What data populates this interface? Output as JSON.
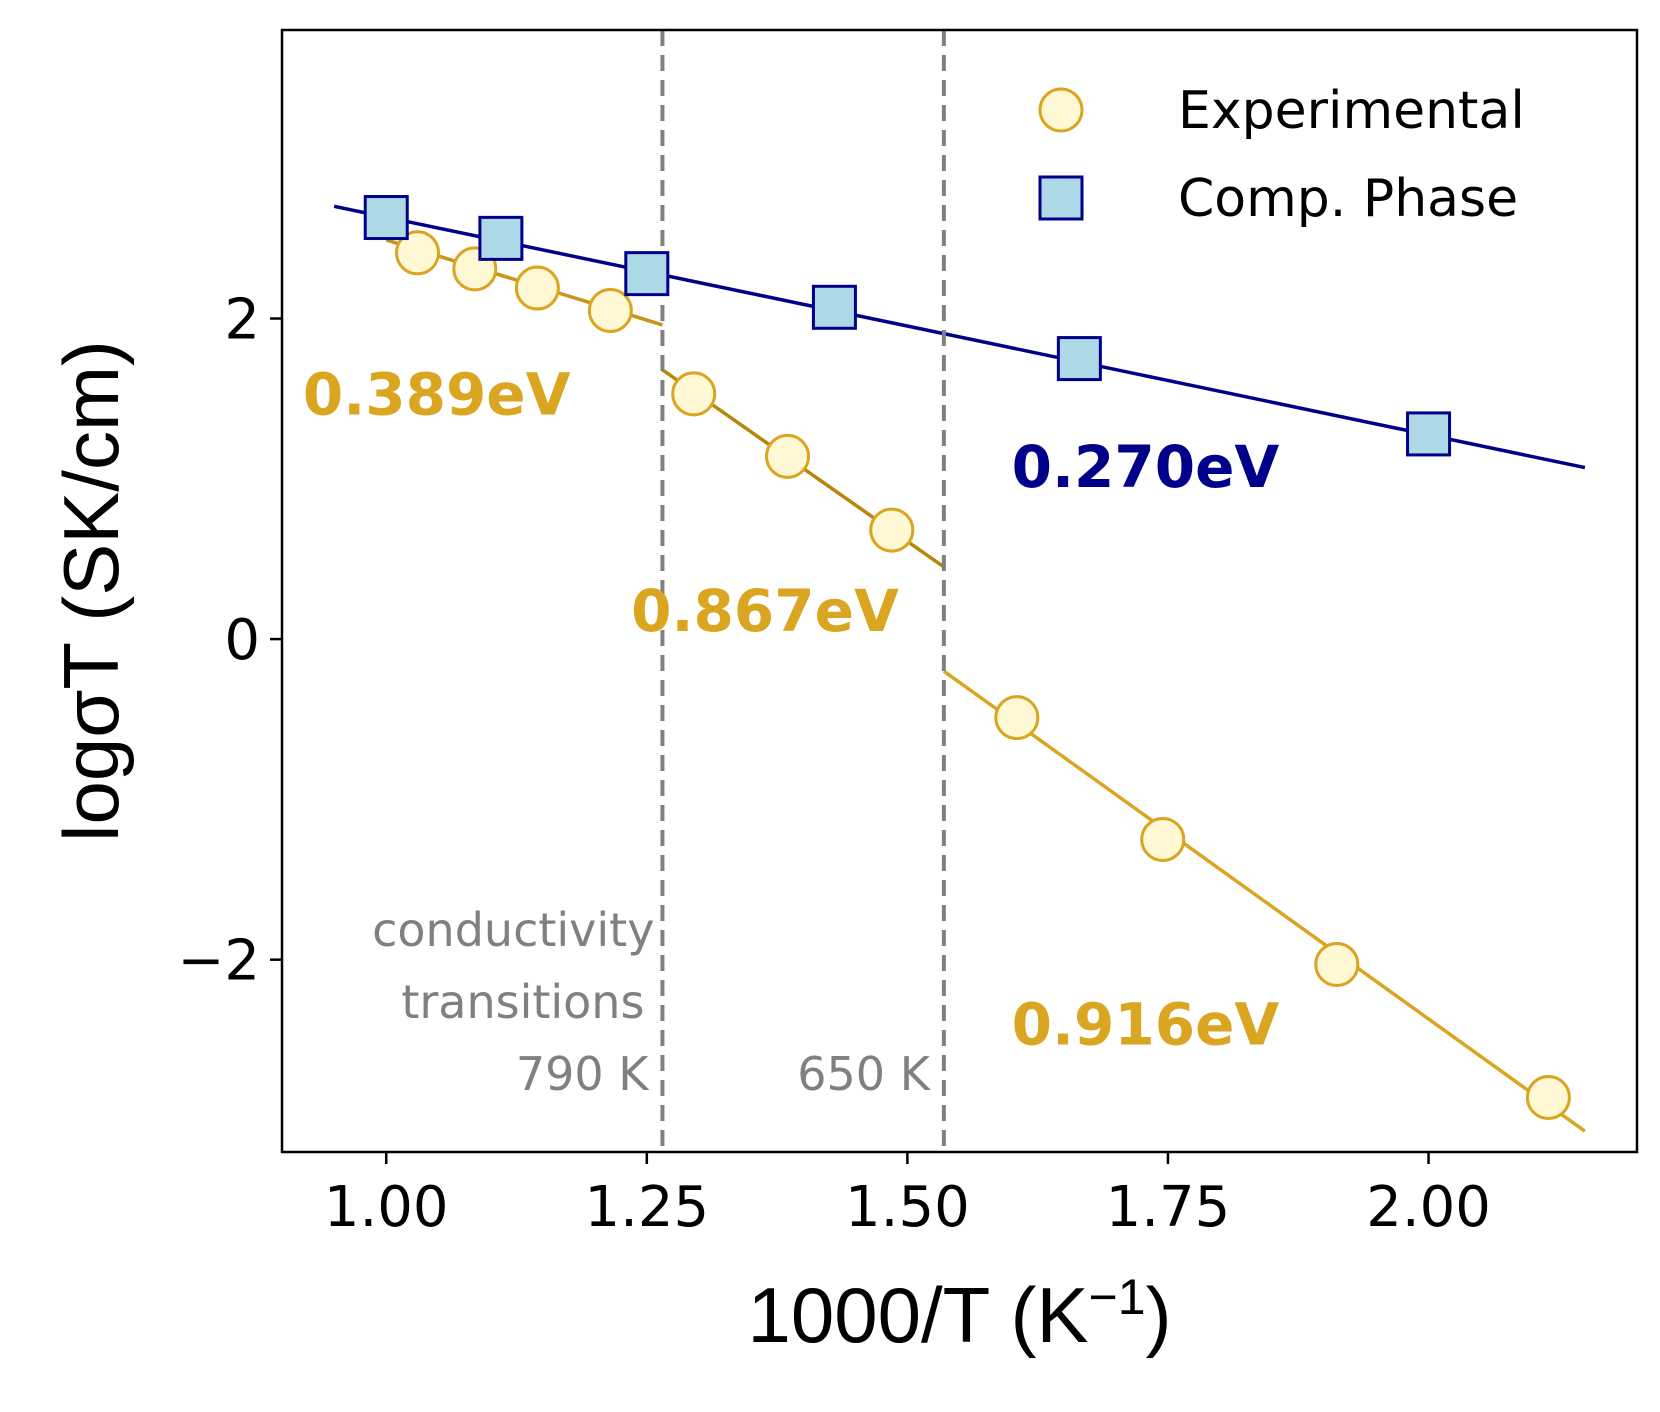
{
  "chart_data": {
    "type": "scatter",
    "xlabel": "1000/T (K",
    "xlabel_sup": "−1",
    "xlabel_close": ")",
    "ylabel": "logσT (SK/cm)",
    "xlim": [
      0.9,
      2.2
    ],
    "ylim": [
      -3.2,
      3.8
    ],
    "x_ticks": [
      1.0,
      1.25,
      1.5,
      1.75,
      2.0
    ],
    "x_tick_labels": [
      "1.00",
      "1.25",
      "1.50",
      "1.75",
      "2.00"
    ],
    "y_ticks": [
      -2,
      0,
      2
    ],
    "y_tick_labels": [
      "−2",
      "0",
      "2"
    ],
    "grid": false,
    "legend_position": "top-right",
    "series": [
      {
        "name": "Experimental",
        "marker": "circle",
        "face_color": "#fff8d4",
        "edge_color": "#daa520",
        "points": [
          {
            "x": 1.03,
            "y": 2.41
          },
          {
            "x": 1.085,
            "y": 2.31
          },
          {
            "x": 1.145,
            "y": 2.19
          },
          {
            "x": 1.215,
            "y": 2.05
          },
          {
            "x": 1.295,
            "y": 1.53
          },
          {
            "x": 1.385,
            "y": 1.14
          },
          {
            "x": 1.485,
            "y": 0.68
          },
          {
            "x": 1.605,
            "y": -0.49
          },
          {
            "x": 1.745,
            "y": -1.25
          },
          {
            "x": 1.912,
            "y": -2.03
          },
          {
            "x": 2.115,
            "y": -2.86
          }
        ]
      },
      {
        "name": "Comp. Phase",
        "marker": "square",
        "face_color": "#add8e6",
        "edge_color": "#00008b",
        "points": [
          {
            "x": 1.0,
            "y": 2.63
          },
          {
            "x": 1.11,
            "y": 2.5
          },
          {
            "x": 1.25,
            "y": 2.28
          },
          {
            "x": 1.43,
            "y": 2.07
          },
          {
            "x": 1.665,
            "y": 1.75
          },
          {
            "x": 2.0,
            "y": 1.28
          }
        ]
      }
    ],
    "fit_lines": [
      {
        "color": "#00008b",
        "from": [
          0.95,
          2.7
        ],
        "to": [
          2.15,
          1.07
        ]
      },
      {
        "color": "#c8941a",
        "from": [
          1.0,
          2.49
        ],
        "to": [
          1.265,
          1.96
        ]
      },
      {
        "color": "#b8860b",
        "from": [
          1.265,
          1.68
        ],
        "to": [
          1.535,
          0.45
        ]
      },
      {
        "color": "#daa520",
        "from": [
          1.535,
          -0.2
        ],
        "to": [
          2.15,
          -3.07
        ]
      }
    ],
    "transitions": [
      {
        "x": 1.265,
        "label": "790 K"
      },
      {
        "x": 1.535,
        "label": "650 K"
      }
    ],
    "transition_caption": [
      "conductivity",
      "transitions"
    ],
    "activation_labels": [
      {
        "text": "0.389eV",
        "color": "#daa520",
        "x": 0.92,
        "y": 1.4
      },
      {
        "text": "0.270eV",
        "color": "#00008b",
        "x": 1.6,
        "y": 0.95
      },
      {
        "text": "0.867eV",
        "color": "#daa520",
        "x": 1.235,
        "y": 0.05
      },
      {
        "text": "0.916eV",
        "color": "#daa520",
        "x": 1.6,
        "y": -2.53
      }
    ]
  }
}
